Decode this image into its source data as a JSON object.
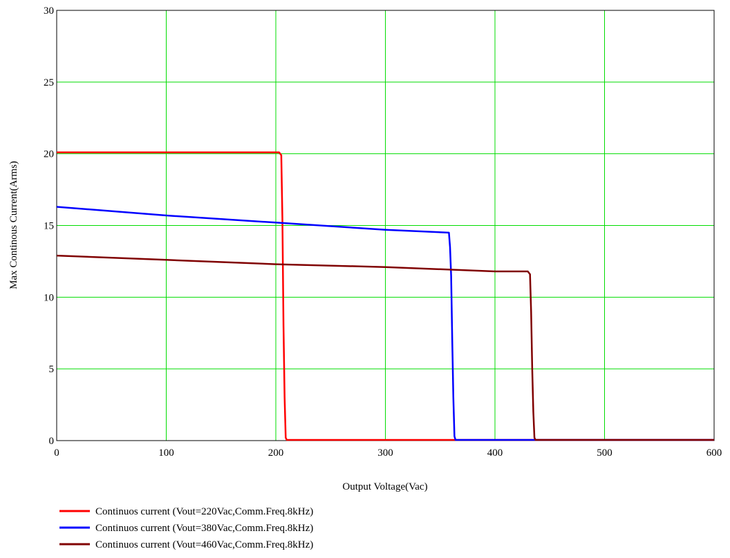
{
  "chart_data": {
    "type": "line",
    "title": "",
    "xlabel": "Output Voltage(Vac)",
    "ylabel": "Max Continous Current(Arms)",
    "xlim": [
      0,
      600
    ],
    "ylim": [
      0,
      30
    ],
    "xticks": [
      0,
      100,
      200,
      300,
      400,
      500,
      600
    ],
    "yticks": [
      0,
      5,
      10,
      15,
      20,
      25,
      30
    ],
    "grid": true,
    "grid_color": "#00dd00",
    "legend_position": "bottom-left",
    "series": [
      {
        "name": "Continuos current (Vout=220Vac,Comm.Freq.8kHz)",
        "color": "#ff0000",
        "points": [
          [
            0,
            20.1
          ],
          [
            100,
            20.1
          ],
          [
            203,
            20.1
          ],
          [
            205,
            19.9
          ],
          [
            206,
            15.5
          ],
          [
            207,
            8.0
          ],
          [
            208,
            3.0
          ],
          [
            209,
            0.2
          ],
          [
            210,
            0.05
          ],
          [
            300,
            0.05
          ],
          [
            400,
            0.05
          ],
          [
            600,
            0.05
          ]
        ]
      },
      {
        "name": "Continuos current (Vout=380Vac,Comm.Freq.8kHz)",
        "color": "#0000ff",
        "points": [
          [
            0,
            16.3
          ],
          [
            100,
            15.7
          ],
          [
            200,
            15.2
          ],
          [
            300,
            14.7
          ],
          [
            358,
            14.5
          ],
          [
            359,
            13.5
          ],
          [
            360,
            11.5
          ],
          [
            361,
            7.0
          ],
          [
            362,
            3.0
          ],
          [
            363,
            0.3
          ],
          [
            364,
            0.05
          ],
          [
            500,
            0.05
          ],
          [
            600,
            0.05
          ]
        ]
      },
      {
        "name": "Continuos current (Vout=460Vac,Comm.Freq.8kHz)",
        "color": "#800000",
        "points": [
          [
            0,
            12.9
          ],
          [
            100,
            12.6
          ],
          [
            200,
            12.3
          ],
          [
            300,
            12.1
          ],
          [
            400,
            11.8
          ],
          [
            430,
            11.8
          ],
          [
            432,
            11.6
          ],
          [
            433,
            9.0
          ],
          [
            434,
            5.0
          ],
          [
            435,
            2.0
          ],
          [
            436,
            0.2
          ],
          [
            437,
            0.05
          ],
          [
            500,
            0.05
          ],
          [
            600,
            0.05
          ]
        ]
      }
    ]
  }
}
